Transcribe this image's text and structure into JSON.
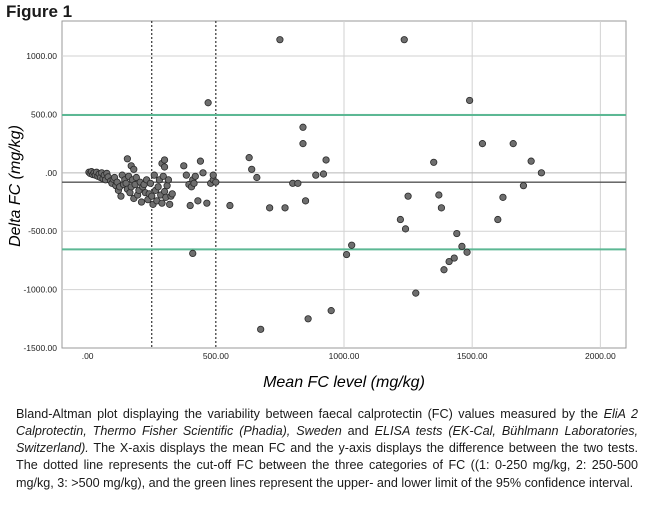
{
  "figure_label": "Figure 1",
  "caption": {
    "t1": "Bland-Altman plot displaying the variability between faecal calprotectin (FC) values measured by the ",
    "i1": "EliA 2 Calprotectin, Thermo Fisher Scientific (Phadia), Sweden",
    "t2": " and ",
    "i2": "ELISA tests (EK-Cal, Bühlmann Laboratories, Switzerland).",
    "t3": " The X-axis displays the mean FC and the y-axis displays the difference between the two tests. The dotted line represents the cut-off FC between the three categories of FC ((1: 0-250 mg/kg, 2: 250-500 mg/kg, 3: >500 mg/kg), and the green lines represent the upper- and lower limit of the 95% confidence interval."
  },
  "colors": {
    "limit_line": "#5cb894",
    "mean_line": "#555555",
    "point_fill": "#6e6e6e",
    "point_stroke": "#2a2a2a",
    "grid": "#d2d2d2",
    "cutoff": "#333333"
  },
  "chart_data": {
    "type": "scatter",
    "title": "",
    "xlabel": "Mean FC level (mg/kg)",
    "ylabel": "Delta FC (mg/kg)",
    "xlim": [
      -100,
      2100
    ],
    "ylim": [
      -1500,
      1300
    ],
    "x_ticks": [
      0,
      500,
      1000,
      1500,
      2000
    ],
    "x_tick_labels": [
      ".00",
      "500.00",
      "1000.00",
      "1500.00",
      "2000.00"
    ],
    "y_ticks": [
      1000,
      500,
      0,
      -500,
      -1000,
      -1500
    ],
    "y_tick_labels": [
      "1000.00",
      "500.00",
      ".00",
      "-500.00",
      "-1000.00",
      "-1500.00"
    ],
    "grid": true,
    "mean_difference": -80,
    "upper_limit": 495,
    "lower_limit": -655,
    "cutoffs": [
      250,
      500
    ],
    "points": [
      [
        5,
        5
      ],
      [
        10,
        -5
      ],
      [
        15,
        10
      ],
      [
        20,
        -15
      ],
      [
        25,
        0
      ],
      [
        30,
        -20
      ],
      [
        35,
        5
      ],
      [
        40,
        -30
      ],
      [
        45,
        -10
      ],
      [
        50,
        -40
      ],
      [
        55,
        0
      ],
      [
        60,
        -50
      ],
      [
        65,
        -20
      ],
      [
        70,
        -60
      ],
      [
        75,
        -5
      ],
      [
        80,
        -35
      ],
      [
        90,
        -70
      ],
      [
        95,
        -90
      ],
      [
        100,
        -55
      ],
      [
        105,
        -40
      ],
      [
        110,
        -110
      ],
      [
        115,
        -80
      ],
      [
        120,
        -150
      ],
      [
        125,
        -120
      ],
      [
        130,
        -200
      ],
      [
        135,
        -20
      ],
      [
        140,
        -100
      ],
      [
        145,
        -60
      ],
      [
        150,
        -90
      ],
      [
        155,
        -140
      ],
      [
        160,
        -30
      ],
      [
        165,
        -170
      ],
      [
        170,
        -120
      ],
      [
        175,
        -60
      ],
      [
        180,
        -220
      ],
      [
        185,
        -100
      ],
      [
        190,
        -40
      ],
      [
        195,
        -190
      ],
      [
        200,
        -150
      ],
      [
        205,
        -80
      ],
      [
        210,
        -250
      ],
      [
        215,
        -120
      ],
      [
        220,
        -100
      ],
      [
        225,
        -170
      ],
      [
        230,
        -60
      ],
      [
        235,
        -230
      ],
      [
        240,
        -180
      ],
      [
        245,
        -90
      ],
      [
        250,
        -200
      ],
      [
        255,
        -270
      ],
      [
        260,
        -20
      ],
      [
        265,
        -150
      ],
      [
        270,
        -240
      ],
      [
        275,
        -120
      ],
      [
        280,
        -60
      ],
      [
        285,
        -190
      ],
      [
        290,
        -260
      ],
      [
        295,
        -30
      ],
      [
        300,
        -160
      ],
      [
        305,
        -210
      ],
      [
        310,
        -110
      ],
      [
        315,
        -60
      ],
      [
        320,
        -270
      ],
      [
        325,
        -200
      ],
      [
        330,
        -180
      ],
      [
        155,
        120
      ],
      [
        170,
        60
      ],
      [
        180,
        30
      ],
      [
        290,
        80
      ],
      [
        300,
        50
      ],
      [
        300,
        110
      ],
      [
        375,
        60
      ],
      [
        385,
        -20
      ],
      [
        395,
        -100
      ],
      [
        400,
        -280
      ],
      [
        405,
        -120
      ],
      [
        410,
        -60
      ],
      [
        415,
        -90
      ],
      [
        420,
        -30
      ],
      [
        430,
        -240
      ],
      [
        440,
        100
      ],
      [
        450,
        0
      ],
      [
        465,
        -260
      ],
      [
        480,
        -90
      ],
      [
        490,
        -60
      ],
      [
        490,
        -20
      ],
      [
        500,
        -80
      ],
      [
        470,
        600
      ],
      [
        410,
        -690
      ],
      [
        555,
        -280
      ],
      [
        630,
        130
      ],
      [
        640,
        30
      ],
      [
        660,
        -40
      ],
      [
        675,
        -1340
      ],
      [
        710,
        -300
      ],
      [
        750,
        1140
      ],
      [
        770,
        -300
      ],
      [
        800,
        -90
      ],
      [
        820,
        -90
      ],
      [
        840,
        390
      ],
      [
        840,
        250
      ],
      [
        850,
        -240
      ],
      [
        860,
        -1250
      ],
      [
        890,
        -20
      ],
      [
        920,
        -10
      ],
      [
        930,
        110
      ],
      [
        950,
        -1180
      ],
      [
        1010,
        -700
      ],
      [
        1030,
        -620
      ],
      [
        1220,
        -400
      ],
      [
        1235,
        1140
      ],
      [
        1240,
        -480
      ],
      [
        1250,
        -200
      ],
      [
        1280,
        -1030
      ],
      [
        1350,
        90
      ],
      [
        1370,
        -190
      ],
      [
        1380,
        -300
      ],
      [
        1390,
        -830
      ],
      [
        1410,
        -760
      ],
      [
        1430,
        -730
      ],
      [
        1440,
        -520
      ],
      [
        1460,
        -630
      ],
      [
        1480,
        -680
      ],
      [
        1490,
        620
      ],
      [
        1540,
        250
      ],
      [
        1600,
        -400
      ],
      [
        1620,
        -210
      ],
      [
        1660,
        250
      ],
      [
        1700,
        -110
      ],
      [
        1730,
        100
      ],
      [
        1770,
        0
      ]
    ]
  }
}
